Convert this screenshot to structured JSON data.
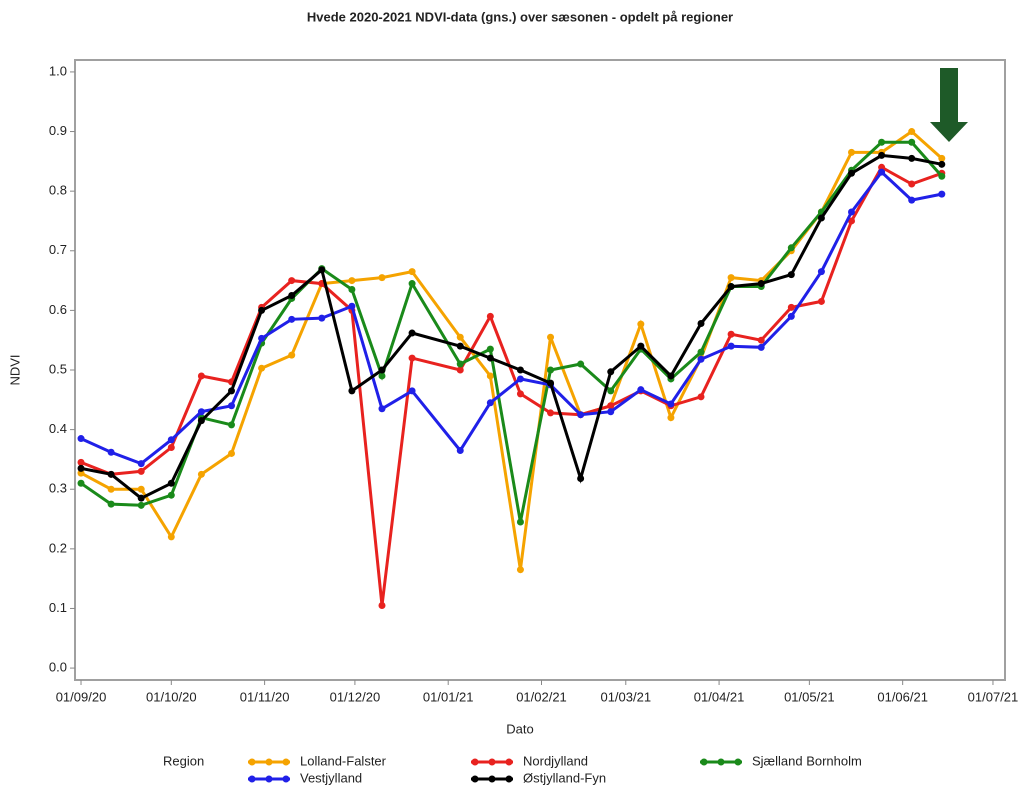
{
  "chart_data": {
    "type": "line",
    "title": "Hvede 2020-2021 NDVI-data (gns.) over sæsonen - opdelt på regioner",
    "x_label": "Dato",
    "y_label": "NDVI",
    "legend_title": "Region",
    "x": [
      "2020-09-01",
      "2020-09-11",
      "2020-09-21",
      "2020-10-01",
      "2020-10-11",
      "2020-10-21",
      "2020-10-31",
      "2020-11-10",
      "2020-11-20",
      "2020-11-30",
      "2020-12-10",
      "2020-12-20",
      "2021-01-05",
      "2021-01-15",
      "2021-01-25",
      "2021-02-04",
      "2021-02-14",
      "2021-02-24",
      "2021-03-06",
      "2021-03-16",
      "2021-03-26",
      "2021-04-05",
      "2021-04-15",
      "2021-04-25",
      "2021-05-05",
      "2021-05-15",
      "2021-05-25",
      "2021-06-04",
      "2021-06-14"
    ],
    "series": [
      {
        "name": "Lolland-Falster",
        "color": "#f5a300",
        "values": [
          0.327,
          0.3,
          0.3,
          0.22,
          0.325,
          0.36,
          0.503,
          0.525,
          0.645,
          0.65,
          0.655,
          0.665,
          0.555,
          0.49,
          0.165,
          0.555,
          0.425,
          0.44,
          0.577,
          0.42,
          0.52,
          0.655,
          0.65,
          0.7,
          0.765,
          0.865,
          0.865,
          0.9,
          0.855
        ]
      },
      {
        "name": "Nordjylland",
        "color": "#e8221f",
        "values": [
          0.345,
          0.325,
          0.33,
          0.37,
          0.49,
          0.48,
          0.605,
          0.65,
          0.645,
          0.6,
          0.105,
          0.52,
          0.5,
          0.59,
          0.46,
          0.428,
          0.425,
          0.44,
          0.465,
          0.44,
          0.455,
          0.56,
          0.55,
          0.605,
          0.615,
          0.75,
          0.84,
          0.812,
          0.83
        ]
      },
      {
        "name": "Sjælland Bornholm",
        "color": "#1a8a1a",
        "values": [
          0.31,
          0.275,
          0.273,
          0.29,
          0.42,
          0.408,
          0.545,
          0.62,
          0.67,
          0.635,
          0.49,
          0.645,
          0.51,
          0.535,
          0.245,
          0.5,
          0.51,
          0.465,
          0.535,
          0.485,
          0.53,
          0.64,
          0.64,
          0.705,
          0.765,
          0.835,
          0.882,
          0.882,
          0.825
        ]
      },
      {
        "name": "Vestjylland",
        "color": "#2020e8",
        "values": [
          0.385,
          0.362,
          0.343,
          0.383,
          0.43,
          0.44,
          0.553,
          0.585,
          0.587,
          0.607,
          0.435,
          0.465,
          0.365,
          0.445,
          0.485,
          0.475,
          0.425,
          0.43,
          0.467,
          0.443,
          0.518,
          0.54,
          0.538,
          0.59,
          0.665,
          0.765,
          0.832,
          0.785,
          0.795
        ]
      },
      {
        "name": "Østjylland-Fyn",
        "color": "#000000",
        "values": [
          0.335,
          0.325,
          0.285,
          0.31,
          0.415,
          0.465,
          0.6,
          0.625,
          0.668,
          0.465,
          0.5,
          0.562,
          0.54,
          0.52,
          0.5,
          0.478,
          0.318,
          0.497,
          0.54,
          0.49,
          0.578,
          0.64,
          0.645,
          0.66,
          0.755,
          0.83,
          0.86,
          0.855,
          0.845
        ]
      }
    ],
    "xlim": [
      "2020-08-30",
      "2021-07-05"
    ],
    "xticks": [
      {
        "value": "2020-09-01",
        "label": "01/09/20"
      },
      {
        "value": "2020-10-01",
        "label": "01/10/20"
      },
      {
        "value": "2020-11-01",
        "label": "01/11/20"
      },
      {
        "value": "2020-12-01",
        "label": "01/12/20"
      },
      {
        "value": "2021-01-01",
        "label": "01/01/21"
      },
      {
        "value": "2021-02-01",
        "label": "01/02/21"
      },
      {
        "value": "2021-03-01",
        "label": "01/03/21"
      },
      {
        "value": "2021-04-01",
        "label": "01/04/21"
      },
      {
        "value": "2021-05-01",
        "label": "01/05/21"
      },
      {
        "value": "2021-06-01",
        "label": "01/06/21"
      },
      {
        "value": "2021-07-01",
        "label": "01/07/21"
      }
    ],
    "ylim": [
      -0.02,
      1.02
    ],
    "yticks": [
      {
        "value": 0,
        "label": "0.0"
      },
      0.1,
      0.2,
      0.3,
      0.4,
      0.5,
      0.6,
      0.7,
      0.8,
      0.9,
      {
        "value": 1,
        "label": "1.0"
      }
    ],
    "grid": false,
    "legend_position": "bottom"
  }
}
